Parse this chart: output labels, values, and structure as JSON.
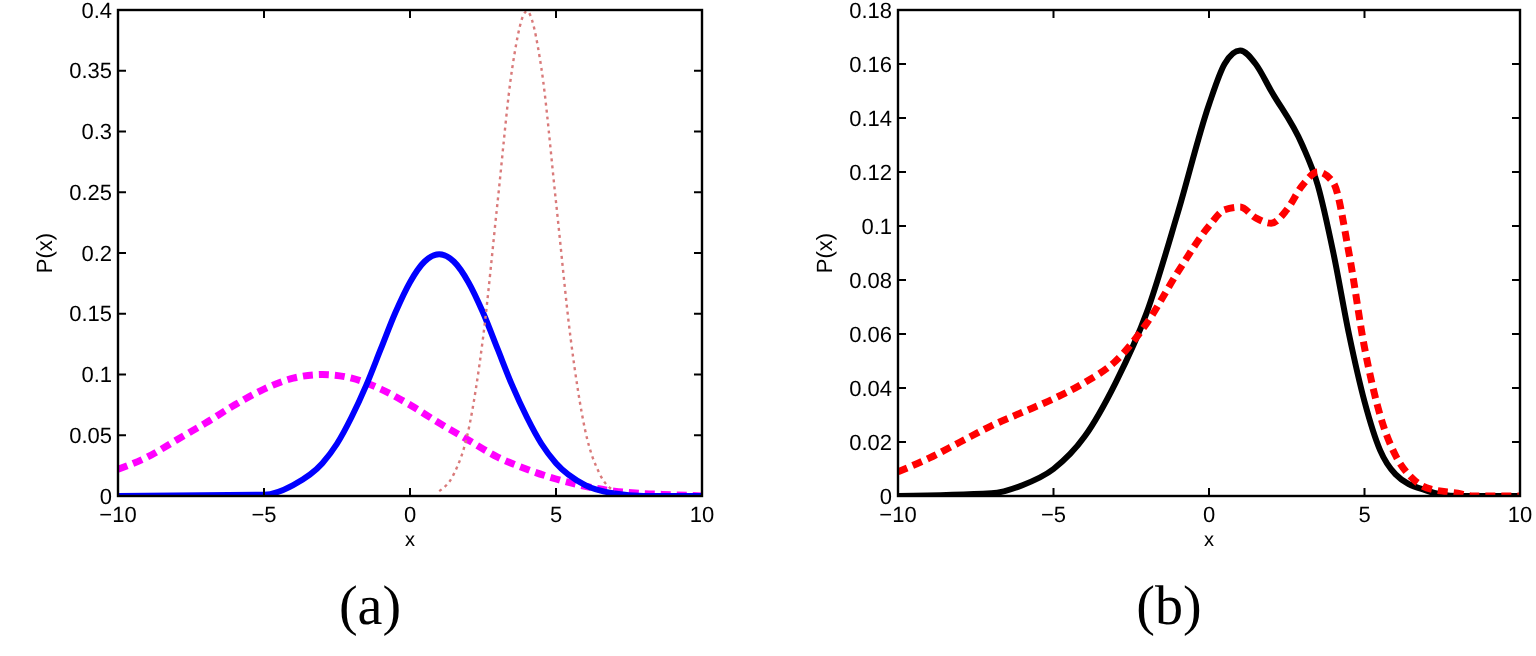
{
  "chart_data": [
    {
      "type": "line",
      "title": "(a)",
      "xlabel": "x",
      "ylabel": "P(x)",
      "xlim": [
        -10,
        10
      ],
      "xticks": [
        -10,
        -5,
        0,
        5,
        10
      ],
      "ylim": [
        0,
        0.4
      ],
      "yticks": [
        0,
        0.05,
        0.1,
        0.15,
        0.2,
        0.25,
        0.3,
        0.35,
        0.4
      ],
      "grid": false,
      "series": [
        {
          "color": "#ff00ff",
          "line_style": "dashed",
          "x": [
            -10,
            -9,
            -8,
            -7,
            -6,
            -5,
            -4,
            -3,
            -2,
            -1,
            0,
            1,
            2,
            3,
            4,
            5,
            6,
            7,
            8,
            9,
            10
          ],
          "values": [
            0.022,
            0.032,
            0.046,
            0.06,
            0.075,
            0.088,
            0.097,
            0.1,
            0.097,
            0.088,
            0.075,
            0.06,
            0.046,
            0.032,
            0.022,
            0.014,
            0.008,
            0.004,
            0.002,
            0.001,
            0
          ]
        },
        {
          "color": "#0000ff",
          "line_style": "solid",
          "x": [
            -10,
            -5,
            -4,
            -3,
            -2.5,
            -2,
            -1.5,
            -1,
            -0.5,
            0,
            0.5,
            1,
            1.5,
            2,
            2.5,
            3,
            3.5,
            4,
            4.5,
            5,
            6,
            7,
            8,
            10
          ],
          "values": [
            0,
            0.001,
            0.009,
            0.027,
            0.043,
            0.065,
            0.091,
            0.121,
            0.151,
            0.176,
            0.193,
            0.199,
            0.193,
            0.176,
            0.151,
            0.121,
            0.091,
            0.065,
            0.043,
            0.027,
            0.009,
            0.002,
            0,
            0
          ]
        },
        {
          "color": "#d97a7a",
          "line_style": "dotted",
          "x": [
            1,
            1.5,
            2,
            2.5,
            3,
            3.5,
            4,
            4.5,
            5,
            5.5,
            6,
            6.5,
            7
          ],
          "values": [
            0.004,
            0.018,
            0.054,
            0.13,
            0.242,
            0.352,
            0.399,
            0.352,
            0.242,
            0.13,
            0.054,
            0.018,
            0.004
          ]
        }
      ]
    },
    {
      "type": "line",
      "title": "(b)",
      "xlabel": "x",
      "ylabel": "P(x)",
      "xlim": [
        -10,
        10
      ],
      "xticks": [
        -10,
        -5,
        0,
        5,
        10
      ],
      "ylim": [
        0,
        0.18
      ],
      "yticks": [
        0,
        0.02,
        0.04,
        0.06,
        0.08,
        0.1,
        0.12,
        0.14,
        0.16,
        0.18
      ],
      "grid": false,
      "series": [
        {
          "color": "#000000",
          "line_style": "solid",
          "x": [
            -10,
            -7,
            -6,
            -5,
            -4,
            -3,
            -2,
            -1,
            0,
            0.5,
            1,
            1.5,
            2,
            3,
            3.5,
            4,
            4.5,
            5,
            5.5,
            6,
            7,
            8,
            10
          ],
          "values": [
            0,
            0.001,
            0.004,
            0.01,
            0.022,
            0.042,
            0.068,
            0.105,
            0.145,
            0.16,
            0.165,
            0.16,
            0.15,
            0.13,
            0.115,
            0.09,
            0.06,
            0.035,
            0.017,
            0.008,
            0.002,
            0,
            0
          ]
        },
        {
          "color": "#ff0000",
          "line_style": "dashed",
          "x": [
            -10,
            -9,
            -8,
            -7,
            -6,
            -5,
            -4,
            -3,
            -2,
            -1,
            0,
            0.5,
            1,
            1.5,
            2,
            2.5,
            3,
            3.5,
            4,
            4.5,
            5,
            5.5,
            6,
            6.5,
            7,
            8,
            8.5,
            10
          ],
          "values": [
            0.009,
            0.014,
            0.02,
            0.026,
            0.031,
            0.036,
            0.042,
            0.05,
            0.064,
            0.083,
            0.1,
            0.106,
            0.107,
            0.103,
            0.101,
            0.106,
            0.115,
            0.12,
            0.116,
            0.09,
            0.055,
            0.03,
            0.015,
            0.007,
            0.003,
            0.001,
            0,
            0
          ]
        }
      ]
    }
  ]
}
